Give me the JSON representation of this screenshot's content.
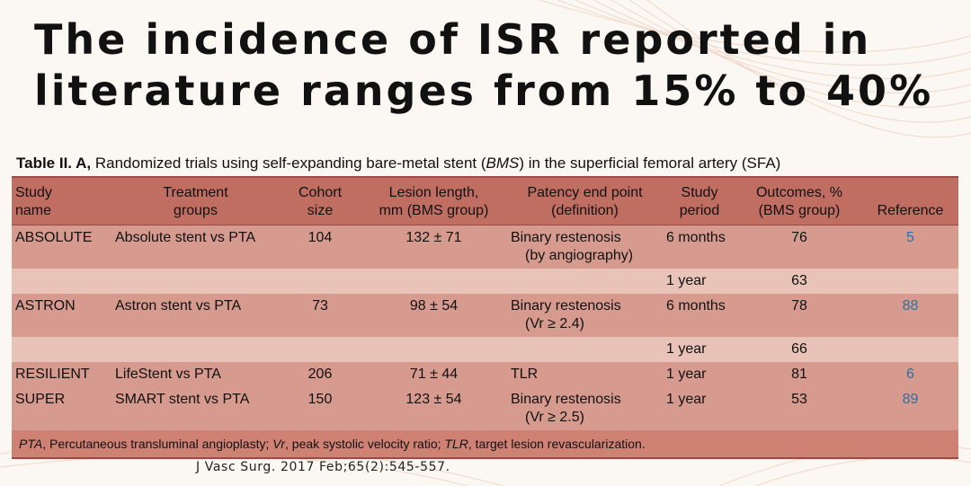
{
  "slide": {
    "title_line1": "The incidence of ISR reported in",
    "title_line2": "literature ranges from 15% to 40%"
  },
  "caption": {
    "label": "Table II. A,",
    "text_a": " Randomized trials using self-expanding bare-metal stent (",
    "bms": "BMS",
    "text_b": ") in the superficial femoral artery (SFA)"
  },
  "table": {
    "headers": [
      [
        "Study",
        "name"
      ],
      [
        "Treatment",
        "groups"
      ],
      [
        "Cohort",
        "size"
      ],
      [
        "Lesion length,",
        "mm (BMS group)"
      ],
      [
        "Patency end point",
        "(definition)"
      ],
      [
        "Study",
        "period"
      ],
      [
        "Outcomes, %",
        "(BMS group)"
      ],
      [
        "",
        "Reference"
      ]
    ],
    "rows": [
      {
        "name": "ABSOLUTE",
        "groups": "Absolute stent vs PTA",
        "size": "104",
        "length": "132 ± 71",
        "endpoint1": "Binary restenosis",
        "endpoint2": "(by angiography)",
        "period": "6 months",
        "outcome": "76",
        "ref": "5"
      },
      {
        "name": "",
        "groups": "",
        "size": "",
        "length": "",
        "endpoint1": "",
        "endpoint2": "",
        "period": "1 year",
        "outcome": "63",
        "ref": ""
      },
      {
        "name": "ASTRON",
        "groups": "Astron stent vs PTA",
        "size": "73",
        "length": "98 ± 54",
        "endpoint1": "Binary restenosis",
        "endpoint2": "(Vr ≥ 2.4)",
        "period": "6 months",
        "outcome": "78",
        "ref": "88"
      },
      {
        "name": "",
        "groups": "",
        "size": "",
        "length": "",
        "endpoint1": "",
        "endpoint2": "",
        "period": "1 year",
        "outcome": "66",
        "ref": ""
      },
      {
        "name": "RESILIENT",
        "groups": "LifeStent vs PTA",
        "size": "206",
        "length": "71 ± 44",
        "endpoint1": "TLR",
        "endpoint2": "",
        "period": "1 year",
        "outcome": "81",
        "ref": "6"
      },
      {
        "name": "SUPER",
        "groups": "SMART stent vs PTA",
        "size": "150",
        "length": "123 ± 54",
        "endpoint1": "Binary restenosis",
        "endpoint2": "(Vr ≥ 2.5)",
        "period": "1 year",
        "outcome": "53",
        "ref": "89"
      }
    ],
    "footnote": {
      "pta": "PTA",
      "pta_def": ", Percutaneous transluminal angioplasty; ",
      "vr": "Vr",
      "vr_def": ", peak systolic velocity ratio; ",
      "tlr": "TLR",
      "tlr_def": ", target lesion revascularization."
    }
  },
  "citation": "J Vasc Surg. 2017 Feb;65(2):545-557.",
  "colors": {
    "header": "#c06d62",
    "row_dark": "#d79a8e",
    "row_light": "#e9c2b8",
    "reference_link": "#2e6f9e",
    "background": "#fbf7f2"
  }
}
